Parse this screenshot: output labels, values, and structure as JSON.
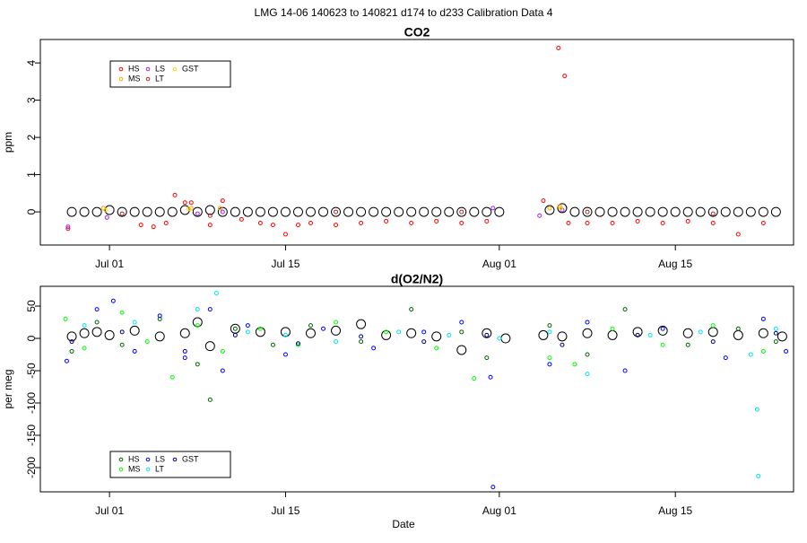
{
  "title": "LMG   14-06    140623 to 140821    d174 to d233   Calibration Data 4",
  "x_label": "Date",
  "chart_data": [
    {
      "type": "scatter",
      "title": "CO2",
      "y_label": "ppm",
      "xlim": [
        176.5,
        236.4
      ],
      "ylim": [
        -0.89,
        4.63
      ],
      "yticks": [
        0,
        1,
        2,
        3,
        4
      ],
      "xticks": [
        {
          "value": 182,
          "label": "Jul 01"
        },
        {
          "value": 196,
          "label": "Jul 15"
        },
        {
          "value": 213,
          "label": "Aug 01"
        },
        {
          "value": 227,
          "label": "Aug 15"
        }
      ],
      "legend": "upper left",
      "series": [
        {
          "color": "#000000",
          "marker_size": 5,
          "x": [
            179,
            180,
            181,
            182,
            183,
            184,
            185,
            186,
            187,
            188,
            189,
            190,
            191,
            192,
            193,
            194,
            195,
            196,
            197,
            198,
            199,
            200,
            201,
            202,
            203,
            204,
            205,
            206,
            207,
            208,
            209,
            210,
            211,
            212,
            213,
            217,
            218,
            219,
            220,
            221,
            222,
            223,
            224,
            225,
            226,
            227,
            228,
            229,
            230,
            231,
            232,
            233,
            234,
            235
          ],
          "values": [
            0,
            0,
            0,
            0.05,
            0,
            0,
            0,
            0,
            0,
            0.05,
            0,
            0.05,
            0,
            0,
            0,
            0,
            0,
            0,
            0,
            0,
            0,
            0,
            0,
            0,
            0,
            0,
            0,
            0,
            0,
            0,
            0,
            0,
            0,
            0,
            0,
            0.05,
            0.1,
            0,
            0,
            0,
            0,
            0,
            0,
            0,
            0,
            0,
            0,
            0,
            0,
            0,
            0,
            0,
            0,
            0
          ]
        },
        {
          "name": "HS",
          "color": "#ff0000",
          "marker_size": 2,
          "x": [
            178.7,
            184.5,
            185.5,
            186.5,
            187.2,
            188,
            188.5,
            190,
            191,
            192.5,
            194,
            195,
            196,
            197,
            198,
            200,
            202,
            204,
            206,
            208,
            210,
            212,
            216.5,
            217.7,
            218.2,
            218.5,
            220,
            222,
            224,
            226,
            228,
            230,
            232,
            234
          ],
          "values": [
            -0.45,
            -0.35,
            -0.4,
            -0.3,
            0.45,
            0.25,
            0.25,
            -0.35,
            0.3,
            -0.2,
            -0.3,
            -0.35,
            -0.6,
            -0.35,
            -0.3,
            -0.35,
            -0.3,
            -0.25,
            -0.3,
            -0.25,
            -0.3,
            -0.25,
            0.3,
            4.4,
            3.65,
            -0.3,
            -0.3,
            -0.3,
            -0.25,
            -0.3,
            -0.25,
            -0.3,
            -0.6,
            -0.3
          ]
        },
        {
          "name": "MS",
          "color": "#ffa500",
          "marker_size": 2,
          "x": [
            181.5,
            188.5,
            190.8,
            217,
            217.8
          ],
          "values": [
            0.1,
            0.1,
            0.1,
            0.1,
            0.15
          ]
        },
        {
          "name": "LS",
          "color": "#a020f0",
          "marker_size": 2,
          "x": [
            178.7,
            181.8,
            189,
            191,
            212.5,
            216.2,
            218
          ],
          "values": [
            -0.4,
            -0.15,
            -0.05,
            0,
            0.1,
            -0.1,
            0.05
          ]
        },
        {
          "name": "LT",
          "color": "#a52a2a",
          "marker_size": 2,
          "x": [
            183,
            190,
            200,
            210,
            220,
            230
          ],
          "values": [
            -0.05,
            -0.1,
            0,
            0,
            0,
            -0.05
          ]
        },
        {
          "name": "GST",
          "color": "#ffd700",
          "marker_size": 2,
          "x": [
            181.7,
            188.3,
            217.9
          ],
          "values": [
            0.05,
            0.08,
            0.1
          ]
        }
      ]
    },
    {
      "type": "scatter",
      "title": "d(O2/N2)",
      "y_label": "per meg",
      "xlim": [
        176.5,
        236.4
      ],
      "ylim": [
        -237.5,
        80.6
      ],
      "yticks": [
        -200,
        -150,
        -100,
        -50,
        0,
        50
      ],
      "xticks": [
        {
          "value": 182,
          "label": "Jul 01"
        },
        {
          "value": 196,
          "label": "Jul 15"
        },
        {
          "value": 213,
          "label": "Aug 01"
        },
        {
          "value": 227,
          "label": "Aug 15"
        }
      ],
      "legend": "lower left",
      "series": [
        {
          "color": "#000000",
          "marker_size": 5,
          "x": [
            179,
            180,
            181,
            182,
            184,
            186,
            188,
            189,
            190,
            192,
            194,
            196,
            198,
            200,
            202,
            204,
            206,
            208,
            210,
            212,
            213.5,
            216.5,
            218,
            220,
            222,
            224,
            226,
            228,
            230,
            232,
            234,
            235.5
          ],
          "values": [
            3,
            8,
            10,
            5,
            12,
            3,
            8,
            25,
            -12,
            15,
            10,
            10,
            8,
            12,
            22,
            5,
            8,
            3,
            -18,
            8,
            0,
            5,
            3,
            8,
            5,
            10,
            12,
            8,
            10,
            5,
            8,
            3
          ]
        },
        {
          "name": "HS",
          "color": "#006400",
          "marker_size": 2,
          "x": [
            179,
            181,
            183,
            186,
            189,
            190,
            192,
            195,
            198,
            202,
            206,
            210,
            212,
            217,
            220,
            223,
            228,
            232,
            235
          ],
          "values": [
            -20,
            25,
            -10,
            30,
            -40,
            -95,
            15,
            -10,
            20,
            -5,
            45,
            10,
            -30,
            20,
            -25,
            45,
            -10,
            15,
            -5
          ]
        },
        {
          "name": "MS",
          "color": "#00ff00",
          "marker_size": 2,
          "x": [
            178.5,
            180,
            183,
            185,
            187,
            189,
            191,
            194,
            197,
            200,
            204,
            208,
            211,
            217,
            219,
            222,
            226,
            230,
            234
          ],
          "values": [
            30,
            -15,
            40,
            -5,
            -60,
            20,
            -20,
            15,
            -10,
            25,
            10,
            -15,
            -62,
            -30,
            -40,
            15,
            -10,
            20,
            -20
          ]
        },
        {
          "name": "LS",
          "color": "#0000ff",
          "marker_size": 2,
          "x": [
            178.6,
            181,
            182.3,
            184,
            186,
            188,
            190,
            191,
            193,
            196,
            199,
            203,
            207,
            210,
            212.3,
            212.5,
            217,
            220,
            223,
            226,
            231,
            234,
            235.8
          ],
          "values": [
            -35,
            45,
            58,
            -20,
            35,
            -30,
            45,
            -50,
            20,
            -25,
            15,
            -15,
            10,
            25,
            -60,
            -230,
            -40,
            25,
            -50,
            15,
            -30,
            30,
            -20
          ]
        },
        {
          "name": "LT",
          "color": "#00e5ee",
          "marker_size": 2,
          "x": [
            180,
            184,
            189,
            190.5,
            193,
            196,
            200,
            205,
            209,
            213,
            217,
            220,
            225,
            229,
            233,
            233.5,
            233.6,
            235
          ],
          "values": [
            20,
            25,
            45,
            70,
            10,
            5,
            -5,
            10,
            5,
            0,
            10,
            -55,
            5,
            10,
            -25,
            -110,
            -213,
            15
          ]
        },
        {
          "name": "GST",
          "color": "#000080",
          "marker_size": 2,
          "x": [
            179,
            183,
            188,
            192,
            197,
            202,
            207,
            212,
            218,
            224,
            230,
            235
          ],
          "values": [
            -5,
            10,
            -20,
            5,
            -8,
            3,
            -5,
            5,
            -10,
            5,
            -5,
            8
          ]
        }
      ]
    }
  ]
}
